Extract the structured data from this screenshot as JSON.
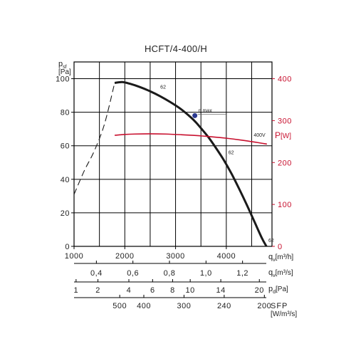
{
  "chart_data": {
    "type": "line",
    "title": "HCFT/4-400/H",
    "xlabel": "q",
    "xlabel_sub": "v",
    "xlabel_unit": "[m³/h]",
    "xlim": [
      1000,
      4900
    ],
    "x_ticks": [
      "1000",
      "2000",
      "3000",
      "4000"
    ],
    "x_tick_values": [
      1000,
      2000,
      3000,
      4000
    ],
    "ylabel": "p",
    "ylabel_sub": "sf",
    "ylabel_unit": "[Pa]",
    "ylim": [
      0,
      110
    ],
    "y_ticks": [
      "0",
      "20",
      "40",
      "60",
      "80",
      "100"
    ],
    "y_tick_values": [
      0,
      20,
      40,
      60,
      80,
      100
    ],
    "y2label": "P",
    "y2label_unit": "[W]",
    "y2lim": [
      0,
      440
    ],
    "y2_ticks": [
      "0",
      "100",
      "200",
      "300",
      "400"
    ],
    "y2_tick_values": [
      0,
      100,
      200,
      300,
      400
    ],
    "grid": true,
    "series": [
      {
        "role": "pressure",
        "color": "#1a1a1a",
        "x": [
          1800,
          1950,
          2100,
          2300,
          2500,
          2700,
          2900,
          3100,
          3300,
          3400,
          3500,
          3650,
          3800,
          3950,
          4100,
          4250,
          4400,
          4550,
          4700,
          4790
        ],
        "y": [
          97.5,
          98,
          97,
          95,
          92.5,
          89.5,
          86,
          82,
          77,
          74,
          70.5,
          65,
          58.5,
          51.5,
          43.5,
          34.5,
          25,
          15,
          5,
          0
        ]
      },
      {
        "role": "pressure-unstable",
        "color": "#1a1a1a",
        "dashed": true,
        "x": [
          1000,
          1200,
          1400,
          1600,
          1800
        ],
        "y": [
          31,
          45,
          57,
          73,
          97.5
        ]
      },
      {
        "role": "power",
        "name": "400V",
        "color": "#c8102e",
        "axis": "y2",
        "x": [
          1800,
          2000,
          2200,
          2500,
          2800,
          3100,
          3400,
          3700,
          4000,
          4300,
          4600,
          4800
        ],
        "y": [
          265,
          267,
          268,
          268.5,
          268,
          266.5,
          264.5,
          261.5,
          258,
          253.5,
          248,
          244
        ]
      }
    ],
    "annotations": [
      {
        "text": "62",
        "x": 2700,
        "y": 94
      },
      {
        "text": "62",
        "x": 4040,
        "y": 55
      },
      {
        "text": "62",
        "x": 4830,
        "y": 2.5
      },
      {
        "text": "η max",
        "x": 3450,
        "y": 80,
        "marker": {
          "x": 3380,
          "y": 78,
          "color": "#2b3990"
        }
      },
      {
        "text": "400V",
        "x": 4540,
        "y": 262,
        "axis": "y2",
        "color": "#c8102e"
      }
    ],
    "secondary_scales": [
      {
        "label": "q",
        "label_sub": "v",
        "unit": "[m³/s]",
        "ticks": [
          {
            "text": "0,4",
            "value": 0.4
          },
          {
            "text": "0,6",
            "value": 0.6
          },
          {
            "text": "0,8",
            "value": 0.8
          },
          {
            "text": "1,0",
            "value": 1.0
          },
          {
            "text": "1,2",
            "value": 1.2
          }
        ]
      },
      {
        "label": "p",
        "label_sub": "d",
        "unit": "[Pa]",
        "ticks": [
          {
            "text": "1",
            "value": 1
          },
          {
            "text": "2",
            "value": 2
          },
          {
            "text": "4",
            "value": 4
          },
          {
            "text": "6",
            "value": 6
          },
          {
            "text": "8",
            "value": 8
          },
          {
            "text": "10",
            "value": 10
          },
          {
            "text": "14",
            "value": 14
          },
          {
            "text": "20",
            "value": 20
          }
        ]
      },
      {
        "label": "SFP",
        "unit": "[W/m³/s]",
        "ticks": [
          {
            "text": "500",
            "value": 500
          },
          {
            "text": "400",
            "value": 400
          },
          {
            "text": "300",
            "value": 300
          },
          {
            "text": "240",
            "value": 240
          },
          {
            "text": "200",
            "value": 200
          }
        ]
      }
    ]
  }
}
